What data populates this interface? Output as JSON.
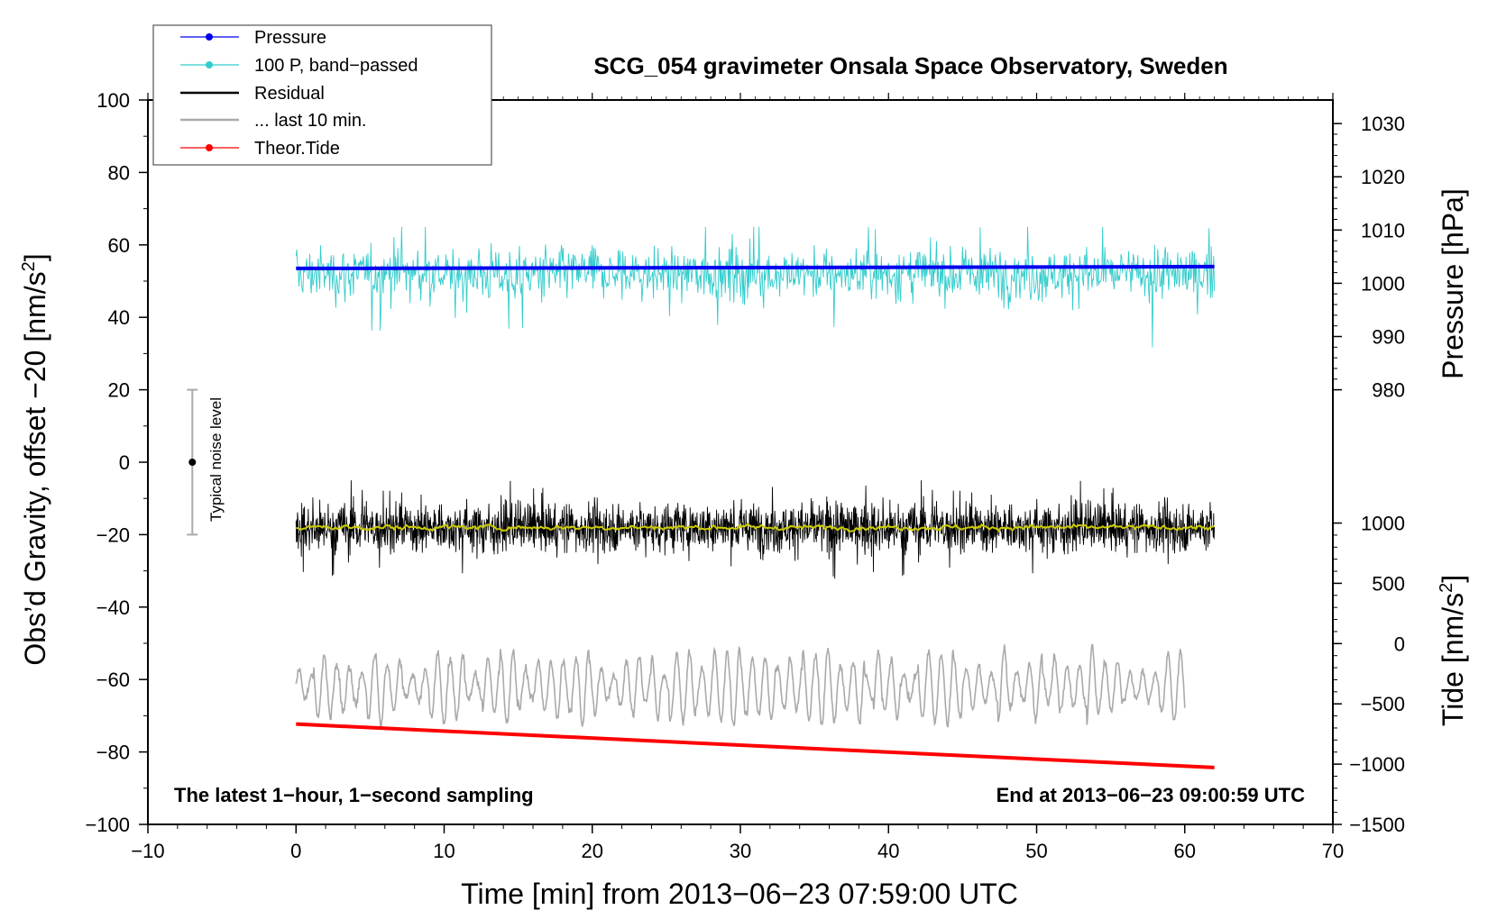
{
  "chart_data": {
    "type": "line",
    "title": "SCG_054 gravimeter Onsala Space Observatory, Sweden",
    "xlabel": "Time [min] from 2013−06−23 07:59:00 UTC",
    "ylabel": "Obs’d Gravity, offset −20 [nm/s²]",
    "ylabel_main": "Obs’d Gravity, offset −20 [nm/s",
    "ylabel_sup": "2",
    "ylabel_tail": "]",
    "xlim": [
      -10,
      70
    ],
    "ylim": [
      -100,
      100
    ],
    "x_ticks": [
      -10,
      0,
      10,
      20,
      30,
      40,
      50,
      60,
      70
    ],
    "x_tick_labels": [
      "−10",
      "0",
      "10",
      "20",
      "30",
      "40",
      "50",
      "60",
      "70"
    ],
    "y_ticks": [
      -100,
      -80,
      -60,
      -40,
      -20,
      0,
      20,
      40,
      60,
      80,
      100
    ],
    "y_tick_labels": [
      "−100",
      "−80",
      "−60",
      "−40",
      "−20",
      "0",
      "20",
      "40",
      "60",
      "80",
      "100"
    ],
    "right_axes": [
      {
        "name": "pressure",
        "label": "Pressure [hPa]",
        "ticks": [
          980,
          990,
          1000,
          1010,
          1020,
          1030
        ],
        "tick_labels": [
          "980",
          "990",
          "1000",
          "1010",
          "1020",
          "1030"
        ],
        "left_axis_map": {
          "value_a": 980,
          "gravity_a": 20,
          "value_b": 1030,
          "gravity_b": 93.5
        }
      },
      {
        "name": "tide",
        "label": "Tide [nm/s²]",
        "label_main": "Tide [nm/s",
        "label_sup": "2",
        "label_tail": "]",
        "ticks": [
          1000,
          500,
          0,
          -500,
          -1000,
          -1500
        ],
        "tick_labels": [
          "1000",
          "500",
          "0",
          "−500",
          "−1000",
          "−1500"
        ],
        "left_axis_map": {
          "value_a": 1000,
          "gravity_a": -16.8,
          "value_b": -1500,
          "gravity_b": -100
        }
      }
    ],
    "series": [
      {
        "name": "Pressure",
        "color": "#0000ee",
        "x_range": [
          0,
          62
        ],
        "y_start": 53.5,
        "y_end": 54.0
      },
      {
        "name": "100 P, band−passed",
        "color": "#33cccc",
        "x_range": [
          0,
          62
        ],
        "center": 52,
        "typical_min": 29,
        "typical_max": 65
      },
      {
        "name": "Residual",
        "color": "#000000",
        "x_range": [
          0,
          62
        ],
        "center": -18,
        "typical_min": -33,
        "typical_max": -5
      },
      {
        "name": "Residual (smoothed)",
        "color": "#cccc00",
        "x_range": [
          0,
          62
        ],
        "center": -18
      },
      {
        "name": "... last 10 min.",
        "color": "#aaaaaa",
        "x_range": [
          0,
          60
        ],
        "center": -62,
        "typical_min": -75,
        "typical_max": -49
      },
      {
        "name": "Theor.Tide",
        "color": "#ff0000",
        "x_range": [
          0,
          62
        ],
        "y_start": -72.3,
        "y_end": -84.3
      }
    ],
    "legend": {
      "position": "top-left",
      "entries": [
        {
          "label": "Pressure",
          "color": "#0000ee",
          "marker": true
        },
        {
          "label": "100 P, band−passed",
          "color": "#33cccc",
          "marker": true
        },
        {
          "label": "Residual",
          "color": "#000000",
          "marker": false
        },
        {
          "label": "... last 10 min.",
          "color": "#aaaaaa",
          "marker": false
        },
        {
          "label": "Theor.Tide",
          "color": "#ff0000",
          "marker": true
        }
      ]
    },
    "noise_bar": {
      "label": "Typical noise level",
      "x": -7,
      "center": 0,
      "low": -20,
      "high": 20
    },
    "annotations": {
      "bottom_left": "The latest 1−hour, 1−second sampling",
      "bottom_right": "End at 2013−06−23 09:00:59 UTC"
    }
  }
}
